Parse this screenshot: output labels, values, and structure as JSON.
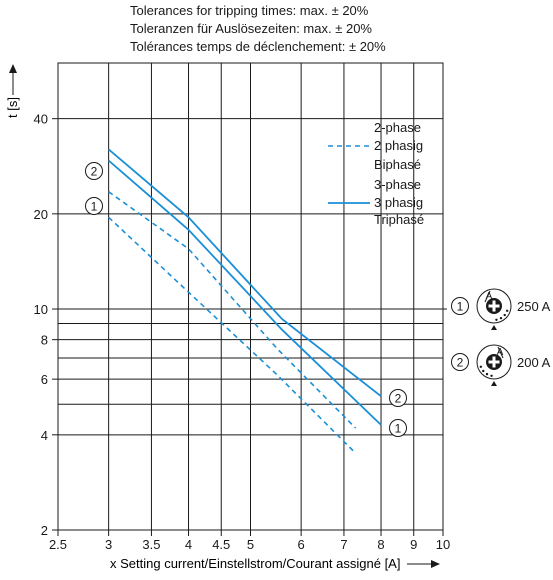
{
  "header": {
    "tolerances": [
      "Tolerances for tripping times: max. ± 20%",
      "Toleranzen für Auslösezeiten: max. ± 20%",
      "Tolérances temps de déclenchement: ± 20%"
    ]
  },
  "colors": {
    "curve": "#1a8fd8",
    "grid": "#1a1a1a"
  },
  "chart_data": {
    "type": "line",
    "xscale": "log",
    "yscale": "log",
    "xlim": [
      2.5,
      10
    ],
    "ylim": [
      2,
      60
    ],
    "grid": true,
    "xlabel": "x Setting current/Einstellstrom/Courant assigné [A]",
    "ylabel": "t [s]",
    "xticks": [
      "2.5",
      "3",
      "3.5",
      "4",
      "4.5",
      "5",
      "6",
      "7",
      "8",
      "9",
      "10"
    ],
    "yticks": [
      "2",
      "4",
      "6",
      "8",
      "10",
      "20",
      "40"
    ],
    "extra_hlines": [
      5,
      7,
      9
    ],
    "legend_position": "top-right",
    "legend": [
      {
        "style": "dashed",
        "lines": [
          "2-phase",
          "2 phasig",
          "Biphasé"
        ]
      },
      {
        "style": "solid",
        "lines": [
          "3-phase",
          "3 phasig",
          "Triphasé"
        ]
      }
    ],
    "series": [
      {
        "style": "solid",
        "marker": "2",
        "x": [
          3,
          4,
          5.6,
          8
        ],
        "y": [
          32,
          19.5,
          9.3,
          5.3
        ]
      },
      {
        "style": "solid",
        "marker": "1",
        "x": [
          3,
          4,
          5.6,
          8
        ],
        "y": [
          29.5,
          17.8,
          8.6,
          4.3
        ]
      },
      {
        "style": "dashed",
        "marker": "2",
        "x": [
          3,
          4,
          5.5,
          7.3
        ],
        "y": [
          23.5,
          15.5,
          7.5,
          4.2
        ]
      },
      {
        "style": "dashed",
        "marker": "1",
        "x": [
          3,
          4,
          5.5,
          7.3
        ],
        "y": [
          19.5,
          11.3,
          6.2,
          3.5
        ]
      }
    ],
    "markers": [
      "1",
      "2"
    ]
  },
  "dials": [
    {
      "marker": "1",
      "label": "250 A",
      "dial_letter": "A"
    },
    {
      "marker": "2",
      "label": "200 A",
      "dial_letter": "A"
    }
  ]
}
